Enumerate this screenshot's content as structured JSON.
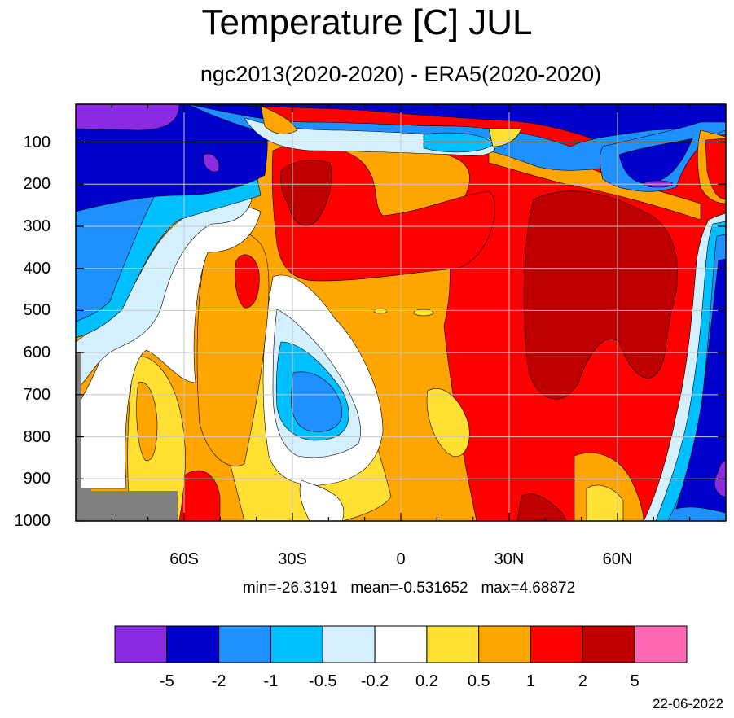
{
  "title": "Temperature [C] JUL",
  "subtitle": "ngc2013(2020-2020) - ERA5(2020-2020)",
  "stats": {
    "min": "min=-26.3191",
    "mean": "mean=-0.531652",
    "max": "max=4.68872"
  },
  "date": "22-06-2022",
  "chart_data": {
    "type": "heatmap",
    "title": "Temperature [C] JUL",
    "subtitle": "ngc2013(2020-2020) - ERA5(2020-2020)",
    "x_ticks": [
      "60S",
      "30S",
      "0",
      "30N",
      "60N"
    ],
    "x_tick_values": [
      -60,
      -30,
      0,
      30,
      60
    ],
    "y_ticks": [
      "100",
      "200",
      "300",
      "400",
      "500",
      "600",
      "700",
      "800",
      "900",
      "1000"
    ],
    "y_tick_values": [
      100,
      200,
      300,
      400,
      500,
      600,
      700,
      800,
      900,
      1000
    ],
    "xlim": [
      -90,
      90
    ],
    "ylim": [
      1000,
      10
    ],
    "grid": true,
    "colorbar": {
      "levels": [
        "-5",
        "-2",
        "-1",
        "-0.5",
        "-0.2",
        "0.2",
        "0.5",
        "1",
        "2",
        "5"
      ],
      "colors": [
        "#8A2BE2",
        "#0000CD",
        "#1E90FF",
        "#00BFFF",
        "#D4F0FF",
        "#FFFFFF",
        "#FFE033",
        "#FFA500",
        "#FF0000",
        "#C00000",
        "#FF69B4"
      ]
    },
    "missing_color": "#808080",
    "min": -26.3191,
    "mean": -0.531652,
    "max": 4.68872
  }
}
